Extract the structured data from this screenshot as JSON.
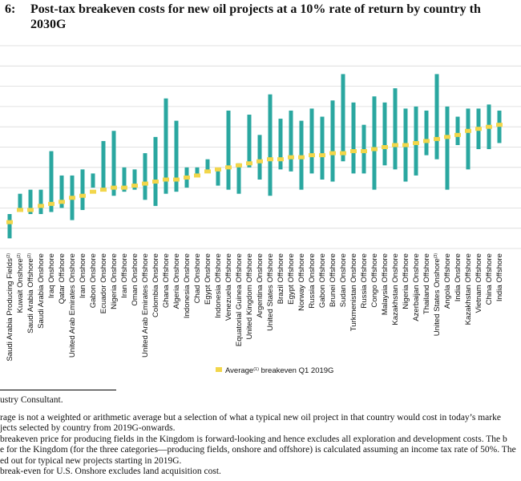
{
  "title": {
    "number": "6:",
    "line1": "Post-tax breakeven costs for new oil projects at a 10% rate of return by country th",
    "line2": "2030G"
  },
  "colors": {
    "bar": "#2aa7a0",
    "avg": "#f2d64b",
    "grid": "#d9d9d9",
    "text": "#111111"
  },
  "chart_data": {
    "type": "bar",
    "subtype": "floating-range-with-average-marker",
    "title": "Post-tax breakeven costs for new oil projects at a 10% rate of return by country th 2030G",
    "xlabel": "",
    "ylabel": "",
    "ylim": [
      0,
      10
    ],
    "grid": true,
    "legend": {
      "label": "Average",
      "superscript": "(1)",
      "suffix": " breakeven Q1 2019G",
      "position": "bottom-center"
    },
    "categories": [
      "Saudi Arabia Producing Fields",
      "Kuwait Onshore",
      "Saudi Arabia Offshore",
      "Saudi Arabia Onshore",
      "Iraq Onshore",
      "Qatar Offshore",
      "United Arab Emirates Onshore",
      "Iran Onshore",
      "Gabon Onshore",
      "Ecuador Onshore",
      "Nigeria Onshore",
      "Iran Offshore",
      "Oman Onshore",
      "United Arab Emirates Offshore",
      "Colombia Onshore",
      "Ghana Offshore",
      "Algeria Onshore",
      "Indonesia Onshore",
      "Chad Onshore",
      "Egypt Onshore",
      "Indonesia Offshore",
      "Venezuela Offshore",
      "Equatorial Guinea Offshore",
      "United Kingdom Offshore",
      "Argentina Onshore",
      "United States Offshore",
      "Brazil Offshore",
      "Egypt Offshore",
      "Norway Offshore",
      "Russia Onshore",
      "Gabon Offshore",
      "Brunei Offshore",
      "Sudan Onshore",
      "Turkmenistan Onshore",
      "Russia Offshore",
      "Congo Offshore",
      "Malaysia Offshore",
      "Kazakhstan Onshore",
      "Nigeria Offshore",
      "Azerbaijan Onshore",
      "Thailand Offshore",
      "United States Onshore",
      "Angola Offshore",
      "India Onshore",
      "Kazakhstan Offshore",
      "Vietnam Offshore",
      "China Offshore",
      "India Offshore"
    ],
    "superscripts": {
      "0": "(2)",
      "1": "(2)",
      "2": "(2)",
      "41": "(3)"
    },
    "low": [
      0.5,
      1.9,
      1.7,
      1.7,
      1.8,
      2.0,
      1.4,
      1.9,
      3.0,
      2.9,
      2.6,
      2.8,
      2.9,
      2.4,
      2.1,
      2.7,
      2.8,
      3.0,
      3.6,
      3.8,
      3.1,
      2.9,
      2.7,
      4.0,
      3.4,
      2.6,
      3.9,
      3.8,
      2.9,
      3.7,
      3.4,
      3.3,
      4.3,
      3.7,
      3.7,
      2.9,
      4.1,
      3.9,
      3.3,
      3.6,
      4.6,
      4.4,
      2.9,
      5.1,
      3.9,
      4.9,
      4.9,
      5.2
    ],
    "avg": [
      1.3,
      1.9,
      1.9,
      2.1,
      2.2,
      2.3,
      2.5,
      2.6,
      2.8,
      2.9,
      3.0,
      3.0,
      3.1,
      3.2,
      3.3,
      3.4,
      3.4,
      3.5,
      3.6,
      3.8,
      3.9,
      4.0,
      4.1,
      4.2,
      4.3,
      4.4,
      4.4,
      4.5,
      4.5,
      4.6,
      4.6,
      4.7,
      4.7,
      4.8,
      4.8,
      4.9,
      5.0,
      5.1,
      5.1,
      5.2,
      5.3,
      5.4,
      5.5,
      5.6,
      5.8,
      5.9,
      6.0,
      6.1
    ],
    "high": [
      1.7,
      2.7,
      2.9,
      2.9,
      4.8,
      3.6,
      3.6,
      3.9,
      3.7,
      5.3,
      5.8,
      4.0,
      3.9,
      4.7,
      5.5,
      7.4,
      6.3,
      4.0,
      4.0,
      4.4,
      3.9,
      6.8,
      4.2,
      6.6,
      5.6,
      7.6,
      6.4,
      6.8,
      6.3,
      6.9,
      6.5,
      7.3,
      8.6,
      7.2,
      6.1,
      7.5,
      7.2,
      7.9,
      6.9,
      7.0,
      6.8,
      8.6,
      7.0,
      6.5,
      6.9,
      6.9,
      7.1,
      6.8
    ]
  },
  "legend_label": "Average",
  "legend_sup": "(1)",
  "legend_suffix": " breakeven Q1 2019G",
  "notes": {
    "source": "ustry Consultant.",
    "n1": "rage is not a weighted or arithmetic average but a selection of what a typical new oil project in that country would cost in today’s marke",
    "n1b": "jects selected by country from 2019G-onwards.",
    "n2": " breakeven price for producing fields in the Kingdom is forward-looking and hence excludes all exploration and development costs. The b",
    "n2b": "e for the Kingdom (for the three categories—producing fields, onshore and offshore) is calculated assuming an income tax rate of 50%. The",
    "n2c": "ed out for typical new projects starting in 2019G.",
    "n3": " break-even for U.S. Onshore excludes land acquisition cost."
  }
}
